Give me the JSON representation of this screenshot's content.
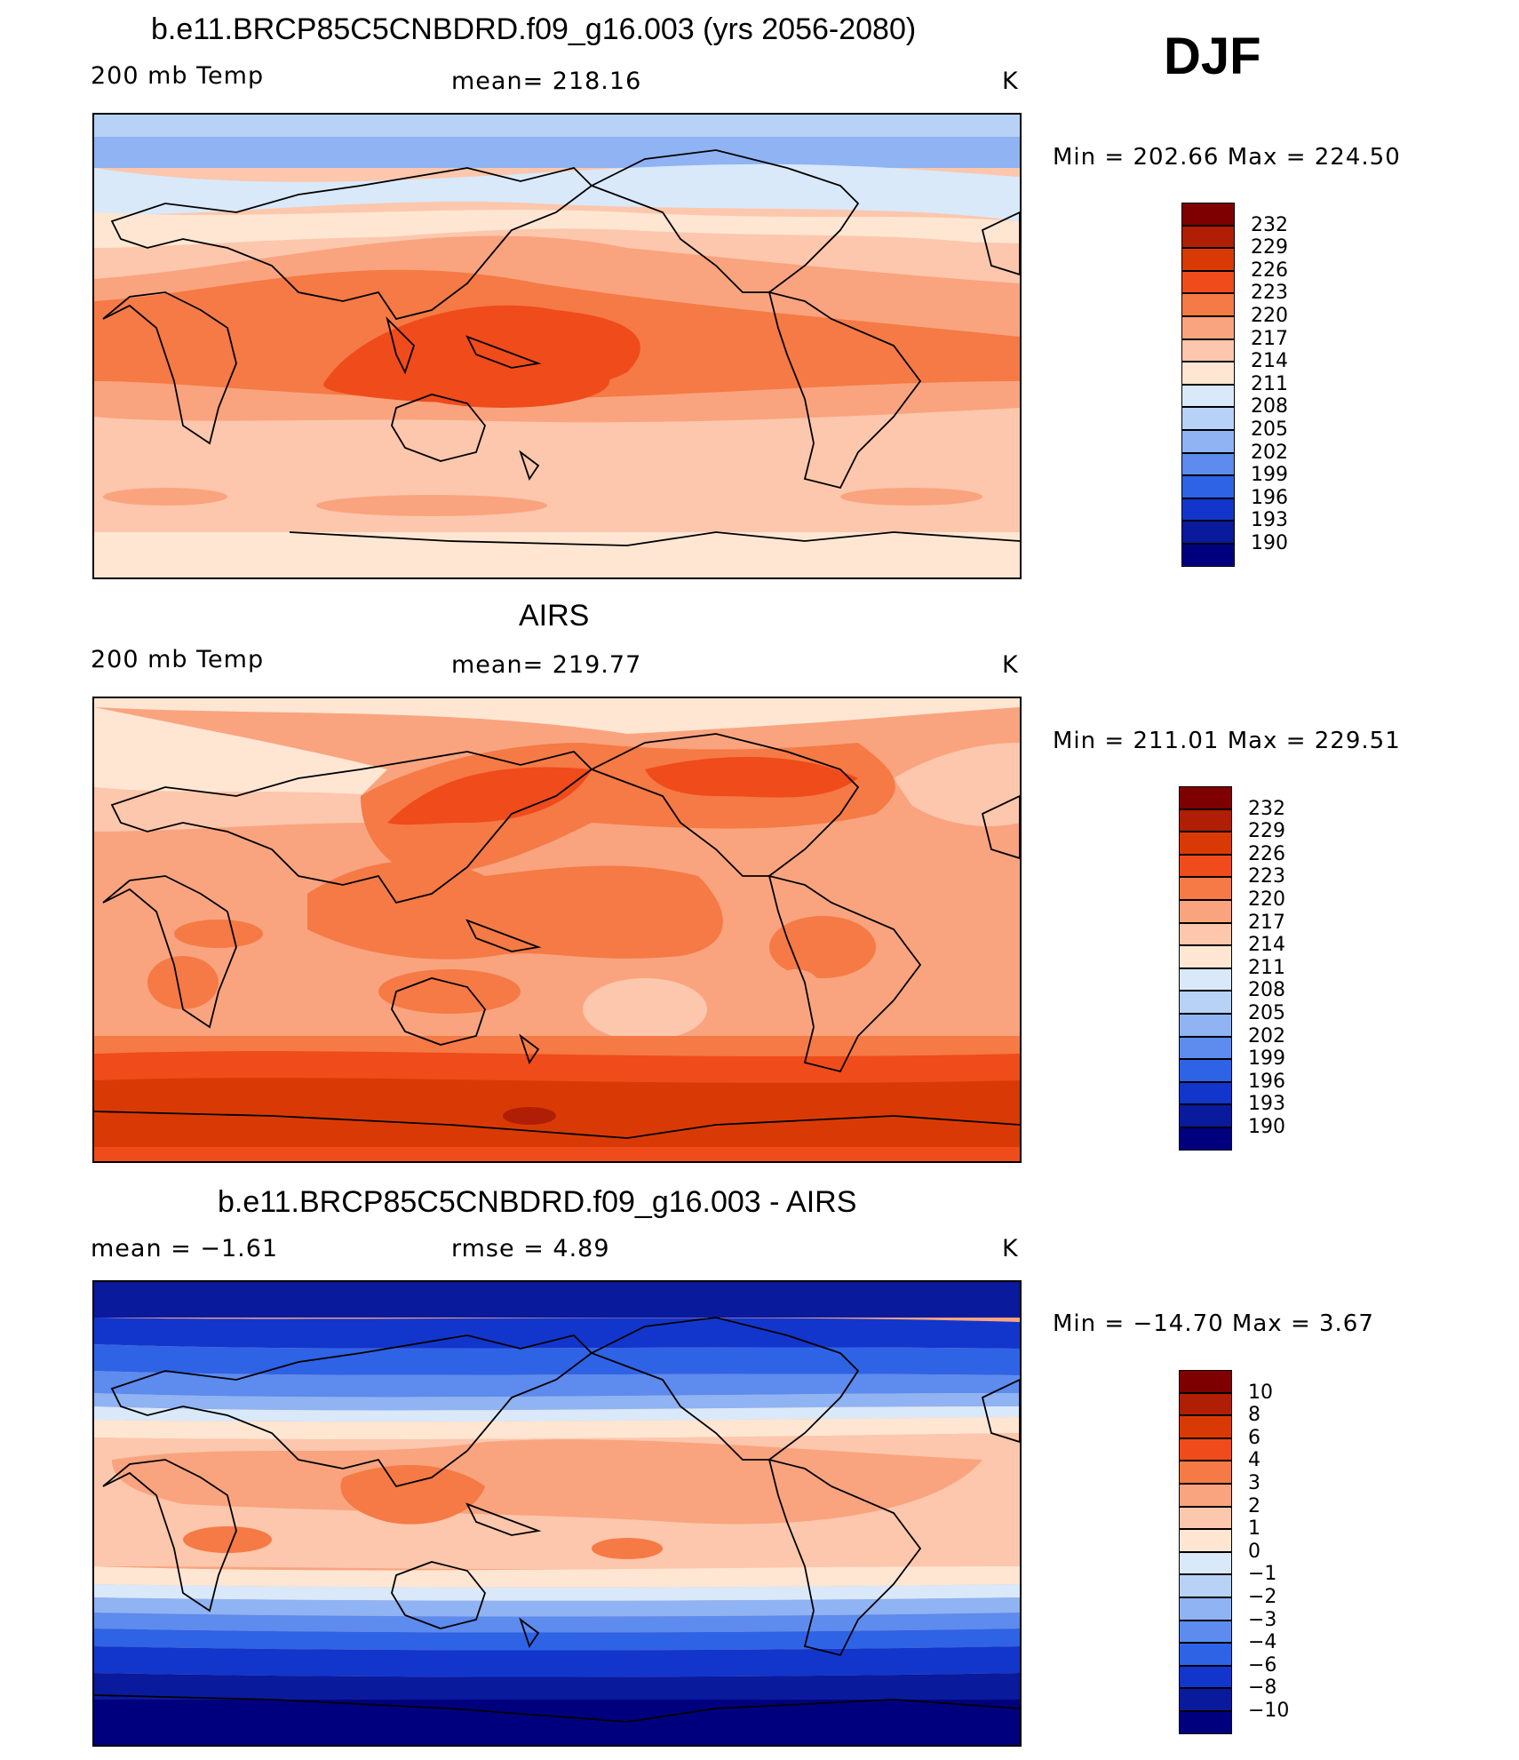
{
  "season": "DJF",
  "units": "K",
  "panels": [
    {
      "title": "b.e11.BRCP85C5CNBDRD.f09_g16.003 (yrs 2056-2080)",
      "left_label": "200 mb Temp",
      "center_label": "mean=  218.16",
      "units": "K",
      "minmax": "Min  =  202.66  Max  =  224.50",
      "colorbar_levels": [
        "232",
        "229",
        "226",
        "223",
        "220",
        "217",
        "214",
        "211",
        "208",
        "205",
        "202",
        "199",
        "196",
        "193",
        "190"
      ]
    },
    {
      "title": "AIRS",
      "left_label": "200 mb Temp",
      "center_label": "mean=  219.77",
      "units": "K",
      "minmax": "Min  =  211.01  Max  =  229.51",
      "colorbar_levels": [
        "232",
        "229",
        "226",
        "223",
        "220",
        "217",
        "214",
        "211",
        "208",
        "205",
        "202",
        "199",
        "196",
        "193",
        "190"
      ]
    },
    {
      "title": "b.e11.BRCP85C5CNBDRD.f09_g16.003 - AIRS",
      "left_label": "mean  =    −1.61",
      "center_label": "rmse  =     4.89",
      "units": "K",
      "minmax": "Min  =  −14.70  Max  =     3.67",
      "colorbar_levels": [
        "10",
        "8",
        "6",
        "4",
        "3",
        "2",
        "1",
        "0",
        "−1",
        "−2",
        "−3",
        "−4",
        "−6",
        "−8",
        "−10"
      ]
    }
  ],
  "colors": [
    "#7f0000",
    "#b01e05",
    "#d93a05",
    "#f04b1b",
    "#f57a45",
    "#f9a47f",
    "#fcc7ac",
    "#fee6d3",
    "#d9e9fa",
    "#b7d1f7",
    "#8fb3f3",
    "#5d8bee",
    "#2f63e6",
    "#1236cc",
    "#0a1a9c",
    "#00007f"
  ],
  "icons": [
    "coastline-map"
  ]
}
